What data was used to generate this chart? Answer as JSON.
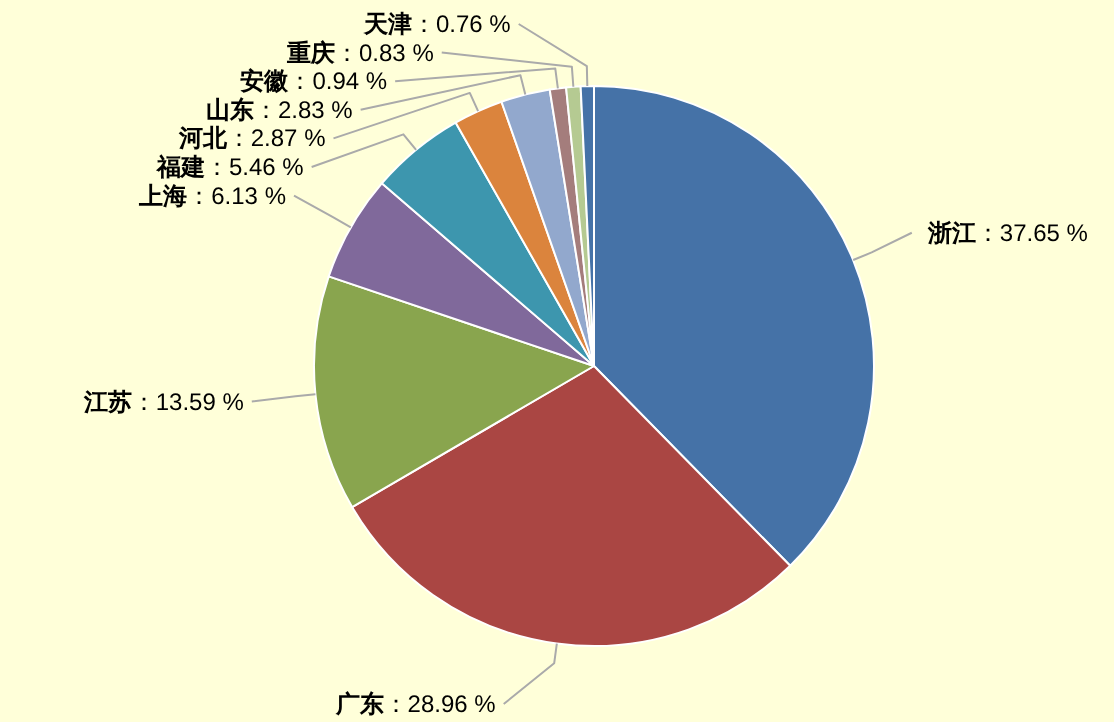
{
  "chart_data": {
    "type": "pie",
    "categories": [
      "浙江",
      "广东",
      "江苏",
      "上海",
      "福建",
      "河北",
      "山东",
      "安徽",
      "重庆",
      "天津"
    ],
    "values": [
      37.65,
      28.96,
      13.59,
      6.13,
      5.46,
      2.87,
      2.83,
      0.94,
      0.83,
      0.76
    ],
    "value_labels": [
      "：37.65 %",
      "：28.96 %",
      "：13.59 %",
      "：6.13 %",
      "：5.46 %",
      "：2.87 %",
      "：2.83 %",
      "：0.94 %",
      "：0.83 %",
      "：0.76 %"
    ],
    "colors": [
      "#4572a7",
      "#aa4643",
      "#89a54e",
      "#80699b",
      "#3d96ae",
      "#db843d",
      "#92a8cd",
      "#a47d7c",
      "#b5ca92",
      "#4572a7"
    ]
  }
}
